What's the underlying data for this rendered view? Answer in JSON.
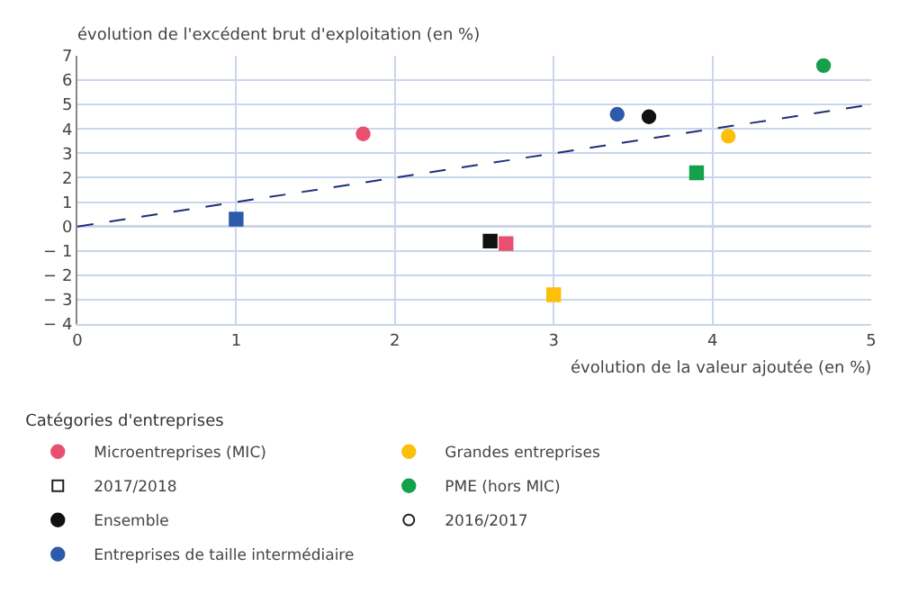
{
  "chart_data": {
    "type": "scatter",
    "ylabel": "évolution de l'excédent brut d'exploitation (en %)",
    "xlabel": "évolution de la valeur ajoutée (en %)",
    "legend_title": "Catégories d'entreprises",
    "xlim": [
      0,
      5
    ],
    "xticks": [
      0,
      1,
      2,
      3,
      4,
      5
    ],
    "ylim": [
      -4,
      7
    ],
    "yticks": [
      {
        "value": -4,
        "label": "− 4"
      },
      {
        "value": -3,
        "label": "− 3"
      },
      {
        "value": -2,
        "label": "− 2"
      },
      {
        "value": -1,
        "label": "− 1"
      },
      0,
      1,
      2,
      3,
      4,
      5,
      6,
      7
    ],
    "ref_lines": [
      {
        "axis": "y",
        "value": 0,
        "color": "#666666"
      }
    ],
    "grid": true,
    "legend": "bottom",
    "series": [
      {
        "name": "Microentreprises (MIC)",
        "color": "#e8506e",
        "x": [
          1.8,
          2.7
        ],
        "values": [
          3.8,
          -0.7
        ],
        "marker": [
          "circle",
          "square"
        ]
      },
      {
        "name": "Grandes entreprises",
        "color": "#fcbf0a",
        "x": [
          4.1,
          3.0
        ],
        "values": [
          3.7,
          -2.8
        ],
        "marker": [
          "circle",
          "square"
        ]
      },
      {
        "name": "2017/2018",
        "color": "#222222",
        "marker": "square-open"
      },
      {
        "name": "PME (hors MIC)",
        "color": "#14a04c",
        "x": [
          4.7,
          3.9
        ],
        "values": [
          6.6,
          2.2
        ],
        "marker": [
          "circle",
          "square"
        ]
      },
      {
        "name": "Ensemble",
        "color": "#111111",
        "x": [
          3.6,
          2.6
        ],
        "values": [
          4.5,
          -0.6
        ],
        "marker": [
          "circle",
          "square"
        ]
      },
      {
        "name": "2016/2017",
        "color": "#222222",
        "marker": "circle-open"
      },
      {
        "name": "Entreprises de taille intermédiaire",
        "color": "#2e5aac",
        "x": [
          3.4,
          1.0
        ],
        "values": [
          4.6,
          0.3
        ],
        "marker": [
          "circle",
          "square"
        ]
      },
      {
        "type": "line",
        "color": "#1f2e7a",
        "x": [
          0,
          5
        ],
        "values": [
          0,
          5
        ],
        "line_style": "dashed",
        "marker": "none"
      }
    ]
  }
}
